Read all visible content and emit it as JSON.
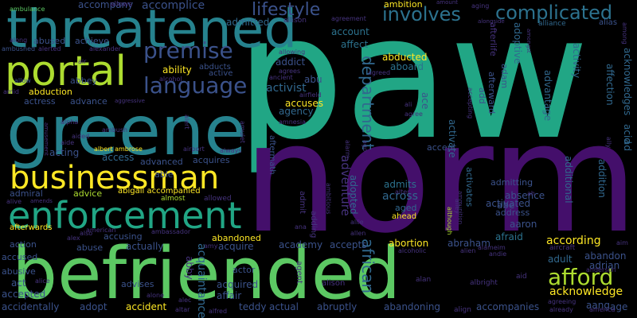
{
  "background": "#000000",
  "palette": {
    "purple": "#46106f",
    "indigo": "#3b528b",
    "blue": "#31688e",
    "teal": "#21918c",
    "green": "#35b779",
    "lime": "#90d743",
    "yellow": "#fde725"
  },
  "words": [
    {
      "text": "paw",
      "color": "#21a685"
    },
    {
      "text": "norm",
      "color": "#440f6b"
    },
    {
      "text": "befriended",
      "color": "#5cc863"
    },
    {
      "text": "threatened",
      "color": "#26828e"
    },
    {
      "text": "greene",
      "color": "#26828e"
    },
    {
      "text": "enforcement",
      "color": "#21a685"
    },
    {
      "text": "portal",
      "color": "#addc30"
    },
    {
      "text": "businessman",
      "color": "#fde725"
    },
    {
      "text": "language",
      "color": "#3b528b"
    },
    {
      "text": "premise",
      "color": "#3b528b"
    },
    {
      "text": "lifestyle",
      "color": "#3b528b"
    },
    {
      "text": "involves",
      "color": "#2c728e"
    },
    {
      "text": "complicated",
      "color": "#2c728e"
    },
    {
      "text": "afford",
      "color": "#addc30"
    },
    {
      "text": "department",
      "color": "#31688e"
    },
    {
      "text": "adventure",
      "color": "#46337e"
    },
    {
      "text": "african",
      "color": "#31688e"
    },
    {
      "text": "accompany",
      "color": "#3b528b"
    },
    {
      "text": "allows",
      "color": "#46337e"
    },
    {
      "text": "accomplice",
      "color": "#3b528b"
    },
    {
      "text": "ambulance",
      "color": "#5cc863"
    },
    {
      "text": "ambition",
      "color": "#fde725"
    },
    {
      "text": "amount",
      "color": "#46337e"
    },
    {
      "text": "aging",
      "color": "#46337e"
    },
    {
      "text": "agreement",
      "color": "#46337e"
    },
    {
      "text": "alliance",
      "color": "#31688e"
    },
    {
      "text": "alias",
      "color": "#3b528b"
    },
    {
      "text": "admitted",
      "color": "#31688e"
    },
    {
      "text": "allison",
      "color": "#46337e"
    },
    {
      "text": "account",
      "color": "#2c728e"
    },
    {
      "text": "adoptive",
      "color": "#31688e"
    },
    {
      "text": "afterlife",
      "color": "#46337e"
    },
    {
      "text": "alongside",
      "color": "#46337e"
    },
    {
      "text": "amongst",
      "color": "#46337e"
    },
    {
      "text": "along",
      "color": "#46337e"
    },
    {
      "text": "abused",
      "color": "#3b528b"
    },
    {
      "text": "achieve",
      "color": "#3b528b"
    },
    {
      "text": "alexander",
      "color": "#46337e"
    },
    {
      "text": "ambushed",
      "color": "#3b528b"
    },
    {
      "text": "alerted",
      "color": "#46337e"
    },
    {
      "text": "air",
      "color": "#46337e"
    },
    {
      "text": "allowing",
      "color": "#46337e"
    },
    {
      "text": "affect",
      "color": "#2c728e"
    },
    {
      "text": "addict",
      "color": "#3b528b"
    },
    {
      "text": "abducted",
      "color": "#fde725"
    },
    {
      "text": "ability",
      "color": "#fde725"
    },
    {
      "text": "abducts",
      "color": "#3b528b"
    },
    {
      "text": "active",
      "color": "#3b528b"
    },
    {
      "text": "alcohol",
      "color": "#46337e"
    },
    {
      "text": "agrees",
      "color": "#46337e"
    },
    {
      "text": "ancient",
      "color": "#46337e"
    },
    {
      "text": "abu",
      "color": "#3b528b"
    },
    {
      "text": "aboard",
      "color": "#2c728e"
    },
    {
      "text": "abbey",
      "color": "#3b528b"
    },
    {
      "text": "allow",
      "color": "#3b528b"
    },
    {
      "text": "activist",
      "color": "#31688e"
    },
    {
      "text": "airfield",
      "color": "#46337e"
    },
    {
      "text": "agreed",
      "color": "#46337e"
    },
    {
      "text": "amid",
      "color": "#46337e"
    },
    {
      "text": "abduction",
      "color": "#fde725"
    },
    {
      "text": "actress",
      "color": "#3b528b"
    },
    {
      "text": "advance",
      "color": "#3b528b"
    },
    {
      "text": "accuses",
      "color": "#fde725"
    },
    {
      "text": "agency",
      "color": "#31688e"
    },
    {
      "text": "amnesia",
      "color": "#46337e"
    },
    {
      "text": "aggressive",
      "color": "#46337e"
    },
    {
      "text": "alpha",
      "color": "#46337e"
    },
    {
      "text": "ambush",
      "color": "#46337e"
    },
    {
      "text": "amusement",
      "color": "#46337e"
    },
    {
      "text": "aided",
      "color": "#46337e"
    },
    {
      "text": "aide",
      "color": "#46337e"
    },
    {
      "text": "acting",
      "color": "#3b528b"
    },
    {
      "text": "access",
      "color": "#31688e"
    },
    {
      "text": "albert ambrose",
      "color": "#fde725"
    },
    {
      "text": "airport",
      "color": "#46337e"
    },
    {
      "text": "always",
      "color": "#46337e"
    },
    {
      "text": "advanced",
      "color": "#3b528b"
    },
    {
      "text": "acquires",
      "color": "#3b528b"
    },
    {
      "text": "able",
      "color": "#3b528b"
    },
    {
      "text": "abigail accompanied",
      "color": "#fde725"
    },
    {
      "text": "admiral",
      "color": "#3b528b"
    },
    {
      "text": "advice",
      "color": "#addc30"
    },
    {
      "text": "alive",
      "color": "#46337e"
    },
    {
      "text": "amends",
      "color": "#46337e"
    },
    {
      "text": "almost",
      "color": "#addc30"
    },
    {
      "text": "allowed",
      "color": "#46337e"
    },
    {
      "text": "admits",
      "color": "#2c728e"
    },
    {
      "text": "across",
      "color": "#31688e"
    },
    {
      "text": "aged",
      "color": "#31688e"
    },
    {
      "text": "adopted",
      "color": "#31688e"
    },
    {
      "text": "adding",
      "color": "#46337e"
    },
    {
      "text": "admit",
      "color": "#46337e"
    },
    {
      "text": "aftermath",
      "color": "#3b528b"
    },
    {
      "text": "ace",
      "color": "#3b528b"
    },
    {
      "text": "ali",
      "color": "#46337e"
    },
    {
      "text": "agree",
      "color": "#46337e"
    },
    {
      "text": "accepting",
      "color": "#46337e"
    },
    {
      "text": "afterward",
      "color": "#3b528b"
    },
    {
      "text": "add",
      "color": "#3b528b"
    },
    {
      "text": "adam",
      "color": "#3b528b"
    },
    {
      "text": "activate",
      "color": "#31688e"
    },
    {
      "text": "activates",
      "color": "#31688e"
    },
    {
      "text": "accept",
      "color": "#3b528b"
    },
    {
      "text": "absence",
      "color": "#3b528b"
    },
    {
      "text": "abe",
      "color": "#3b528b"
    },
    {
      "text": "admitting",
      "color": "#3b528b"
    },
    {
      "text": "activated",
      "color": "#3b528b"
    },
    {
      "text": "address",
      "color": "#3b528b"
    },
    {
      "text": "aaron",
      "color": "#3b528b"
    },
    {
      "text": "afraid",
      "color": "#2c728e"
    },
    {
      "text": "according",
      "color": "#fde725"
    },
    {
      "text": "adult",
      "color": "#31688e"
    },
    {
      "text": "acknowledge",
      "color": "#fde725"
    },
    {
      "text": "aang",
      "color": "#3b528b"
    },
    {
      "text": "age",
      "color": "#3b528b"
    },
    {
      "text": "ahead",
      "color": "#fde725"
    },
    {
      "text": "alter",
      "color": "#46337e"
    },
    {
      "text": "allie",
      "color": "#46337e"
    },
    {
      "text": "allen",
      "color": "#46337e"
    },
    {
      "text": "abortion",
      "color": "#fde725"
    },
    {
      "text": "abraham",
      "color": "#3b528b"
    },
    {
      "text": "alcoholic",
      "color": "#46337e"
    },
    {
      "text": "alien",
      "color": "#46337e"
    },
    {
      "text": "andie",
      "color": "#46337e"
    },
    {
      "text": "alameim",
      "color": "#46337e"
    },
    {
      "text": "although",
      "color": "#addc30"
    },
    {
      "text": "ammunition",
      "color": "#46337e"
    },
    {
      "text": "alley",
      "color": "#46337e"
    },
    {
      "text": "ana",
      "color": "#46337e"
    },
    {
      "text": "afterwards",
      "color": "#fde725"
    },
    {
      "text": "also",
      "color": "#46337e"
    },
    {
      "text": "alex",
      "color": "#46337e"
    },
    {
      "text": "american",
      "color": "#46337e"
    },
    {
      "text": "action",
      "color": "#3b528b"
    },
    {
      "text": "abuse",
      "color": "#3b528b"
    },
    {
      "text": "accusing",
      "color": "#3b528b"
    },
    {
      "text": "ambassador",
      "color": "#46337e"
    },
    {
      "text": "abandoned",
      "color": "#fde725"
    },
    {
      "text": "amy",
      "color": "#46337e"
    },
    {
      "text": "acquire",
      "color": "#3b528b"
    },
    {
      "text": "actually",
      "color": "#3b528b"
    },
    {
      "text": "accused",
      "color": "#3b528b"
    },
    {
      "text": "abusive",
      "color": "#3b528b"
    },
    {
      "text": "actor",
      "color": "#3b528b"
    },
    {
      "text": "academy",
      "color": "#3b528b"
    },
    {
      "text": "accepts",
      "color": "#3b528b"
    },
    {
      "text": "advises",
      "color": "#3b528b"
    },
    {
      "text": "acquired",
      "color": "#3b528b"
    },
    {
      "text": "affair",
      "color": "#3b528b"
    },
    {
      "text": "teddy",
      "color": "#3b528b"
    },
    {
      "text": "actual",
      "color": "#3b528b"
    },
    {
      "text": "abruptly",
      "color": "#3b528b"
    },
    {
      "text": "abandoning",
      "color": "#3b528b"
    },
    {
      "text": "accompanies",
      "color": "#3b528b"
    },
    {
      "text": "accident",
      "color": "#fde725"
    },
    {
      "text": "adopt",
      "color": "#3b528b"
    },
    {
      "text": "accidentally",
      "color": "#3b528b"
    },
    {
      "text": "accepted",
      "color": "#3b528b"
    },
    {
      "text": "act",
      "color": "#3b528b"
    },
    {
      "text": "alice",
      "color": "#46337e"
    },
    {
      "text": "alone",
      "color": "#46337e"
    },
    {
      "text": "alec",
      "color": "#46337e"
    },
    {
      "text": "altar",
      "color": "#46337e"
    },
    {
      "text": "alfred",
      "color": "#46337e"
    },
    {
      "text": "alison",
      "color": "#46337e"
    },
    {
      "text": "alan",
      "color": "#46337e"
    },
    {
      "text": "albright",
      "color": "#46337e"
    },
    {
      "text": "aid",
      "color": "#46337e"
    },
    {
      "text": "agreeing",
      "color": "#46337e"
    },
    {
      "text": "already",
      "color": "#46337e"
    },
    {
      "text": "america",
      "color": "#46337e"
    },
    {
      "text": "align",
      "color": "#46337e"
    },
    {
      "text": "aircraft",
      "color": "#46337e"
    },
    {
      "text": "abandon",
      "color": "#3b528b"
    },
    {
      "text": "adrian",
      "color": "#3b528b"
    },
    {
      "text": "anderson",
      "color": "#46337e"
    },
    {
      "text": "aim",
      "color": "#46337e"
    },
    {
      "text": "among",
      "color": "#46337e"
    },
    {
      "text": "activity",
      "color": "#31688e"
    },
    {
      "text": "affection",
      "color": "#31688e"
    },
    {
      "text": "acknowledges",
      "color": "#31688e"
    },
    {
      "text": "acid",
      "color": "#31688e"
    },
    {
      "text": "ally",
      "color": "#46337e"
    },
    {
      "text": "ad",
      "color": "#31688e"
    },
    {
      "text": "advantage",
      "color": "#31688e"
    },
    {
      "text": "additional",
      "color": "#31688e"
    },
    {
      "text": "addition",
      "color": "#31688e"
    },
    {
      "text": "alarm",
      "color": "#46337e"
    },
    {
      "text": "ago",
      "color": "#46337e"
    },
    {
      "text": "alert",
      "color": "#46337e"
    },
    {
      "text": "amulet",
      "color": "#46337e"
    },
    {
      "text": "ah",
      "color": "#46337e"
    },
    {
      "text": "abby",
      "color": "#46337e"
    },
    {
      "text": "acquaintance",
      "color": "#31688e"
    },
    {
      "text": "agent",
      "color": "#46337e"
    },
    {
      "text": "ambitious",
      "color": "#46337e"
    }
  ]
}
